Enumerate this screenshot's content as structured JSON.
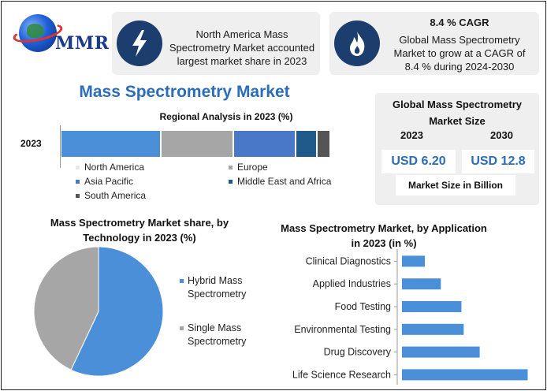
{
  "brand": {
    "logo_text": "MMR"
  },
  "info_cards": [
    {
      "icon": "lightning-bolt-icon",
      "text": "North America Mass Spectrometry Market accounted largest market share in 2023"
    },
    {
      "icon": "flame-icon",
      "headline": "8.4 % CAGR",
      "text": "Global Mass Spectrometry Market to grow at a CAGR of 8.4 % during 2024-2030"
    }
  ],
  "main_title": "Mass Spectrometry Market",
  "market_size": {
    "title": "Global Mass Spectrometry Market Size",
    "year_2023": "2023",
    "year_2030": "2030",
    "value_2023": "USD 6.20",
    "value_2030": "USD 12.8",
    "unit_label": "Market Size in Billion"
  },
  "colors": {
    "accent_blue": "#2b6db8",
    "navy": "#1c3e6e",
    "north_america": "#4a8fd8",
    "europe": "#a6a6a6",
    "asia_pacific": "#4a78c8",
    "mea": "#1f5a8a",
    "south_america": "#555555",
    "pie_hybrid": "#4a8fd8",
    "pie_single": "#a6a6a6",
    "app_bar": "#4a8fd8"
  },
  "chart_data": [
    {
      "type": "bar",
      "orientation": "horizontal-stacked",
      "title": "Regional Analysis in 2023 (%)",
      "categories": [
        "2023"
      ],
      "series": [
        {
          "name": "North America",
          "values": [
            37
          ]
        },
        {
          "name": "Europe",
          "values": [
            27
          ]
        },
        {
          "name": "Asia Pacific",
          "values": [
            23
          ]
        },
        {
          "name": "Middle East and Africa",
          "values": [
            8
          ]
        },
        {
          "name": "South America",
          "values": [
            5
          ]
        }
      ],
      "legend_position": "bottom"
    },
    {
      "type": "pie",
      "title": "Mass Spectrometry Market share, by Technology in 2023  (%)",
      "labels": [
        "Hybrid Mass Spectrometry",
        "Single Mass Spectrometry"
      ],
      "values": [
        57,
        43
      ],
      "legend_position": "right"
    },
    {
      "type": "bar",
      "orientation": "horizontal",
      "title": "Mass Spectrometry Market, by Application in 2023 (in %)",
      "categories": [
        "Clinical Diagnostics",
        "Applied Industries",
        "Food Testing",
        "Environmental Testing",
        "Drug Discovery",
        "Life Science Research"
      ],
      "values": [
        10,
        17,
        26,
        27,
        34,
        55
      ],
      "xlim": [
        0,
        60
      ]
    }
  ]
}
